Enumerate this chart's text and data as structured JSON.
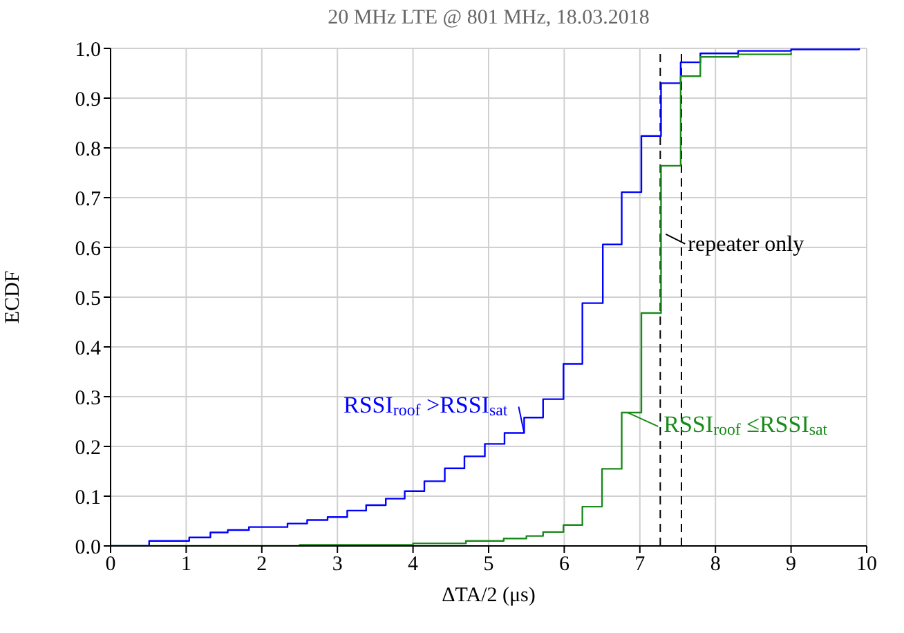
{
  "chart_data": {
    "type": "step",
    "title": "20 MHz LTE @ 801 MHz, 18.03.2018",
    "xlabel": "ΔTA/2 (μs)",
    "ylabel": "ECDF",
    "xlim": [
      0,
      10
    ],
    "xticks": [
      0,
      1,
      2,
      3,
      4,
      5,
      6,
      7,
      8,
      9,
      10
    ],
    "ylim": [
      0,
      1
    ],
    "yticks": [
      {
        "value": 0,
        "label": "0.0"
      },
      {
        "value": 0.1,
        "label": "0.1"
      },
      {
        "value": 0.2,
        "label": "0.2"
      },
      {
        "value": 0.3,
        "label": "0.3"
      },
      {
        "value": 0.4,
        "label": "0.4"
      },
      {
        "value": 0.5,
        "label": "0.5"
      },
      {
        "value": 0.6,
        "label": "0.6"
      },
      {
        "value": 0.7,
        "label": "0.7"
      },
      {
        "value": 0.8,
        "label": "0.8"
      },
      {
        "value": 0.9,
        "label": "0.9"
      },
      {
        "value": 1,
        "label": "1.0"
      }
    ],
    "grid": true,
    "marker": "none",
    "line_style": "solid",
    "series": [
      {
        "name": "RSSI$_{roof}$ >RSSI$_{sat}$",
        "color": "#0000ff",
        "x": [
          0,
          0.51,
          1.04,
          1.32,
          1.55,
          1.83,
          2.34,
          2.6,
          2.87,
          3.13,
          3.38,
          3.64,
          3.89,
          4.15,
          4.42,
          4.68,
          4.95,
          5.21,
          5.47,
          5.72,
          5.99,
          6.24,
          6.51,
          6.76,
          7.02,
          7.28,
          7.54,
          7.8,
          8.3,
          9.0,
          9.9
        ],
        "values": [
          0,
          0.01,
          0.017,
          0.027,
          0.032,
          0.038,
          0.045,
          0.052,
          0.058,
          0.071,
          0.082,
          0.095,
          0.11,
          0.13,
          0.156,
          0.18,
          0.205,
          0.227,
          0.258,
          0.295,
          0.366,
          0.488,
          0.606,
          0.711,
          0.824,
          0.93,
          0.972,
          0.99,
          0.995,
          0.998,
          1.0
        ]
      },
      {
        "name": "RSSI$_{roof}$ ≤RSSI$_{sat}$",
        "color": "#1a8a1a",
        "x": [
          0,
          2.5,
          4.0,
          4.7,
          5.2,
          5.5,
          5.72,
          5.99,
          6.24,
          6.5,
          6.76,
          7.02,
          7.28,
          7.54,
          7.8,
          8.3,
          9.0
        ],
        "values": [
          0,
          0.002,
          0.005,
          0.01,
          0.015,
          0.02,
          0.028,
          0.042,
          0.079,
          0.155,
          0.268,
          0.468,
          0.764,
          0.944,
          0.983,
          0.988,
          0.992
        ]
      }
    ],
    "ref_lines": [
      {
        "axis": "x",
        "value": 7.27,
        "color": "#000000",
        "line_style": "dashed",
        "label": "repeater only"
      },
      {
        "axis": "x",
        "value": 7.55,
        "color": "#000000",
        "line_style": "dashed"
      }
    ]
  }
}
